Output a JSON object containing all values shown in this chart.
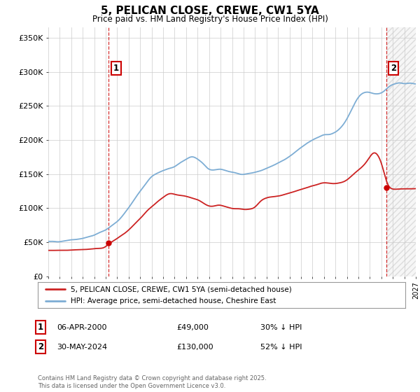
{
  "title": "5, PELICAN CLOSE, CREWE, CW1 5YA",
  "subtitle": "Price paid vs. HM Land Registry's House Price Index (HPI)",
  "ylabel_ticks": [
    "£0",
    "£50K",
    "£100K",
    "£150K",
    "£200K",
    "£250K",
    "£300K",
    "£350K"
  ],
  "ytick_values": [
    0,
    50000,
    100000,
    150000,
    200000,
    250000,
    300000,
    350000
  ],
  "ylim": [
    0,
    365000
  ],
  "xlim_start": 1995,
  "xlim_end": 2027,
  "sale1_date": 2000.27,
  "sale1_price": 49000,
  "sale1_label": "1",
  "sale2_date": 2024.42,
  "sale2_price": 130000,
  "sale2_label": "2",
  "marker_color": "#cc0000",
  "hpi_color": "#7dadd4",
  "sale_line_color": "#cc2222",
  "grid_color": "#cccccc",
  "annotation_box_color": "#cc0000",
  "bg_color": "#ffffff",
  "hatch_color": "#bbbbbb",
  "legend_line1": "5, PELICAN CLOSE, CREWE, CW1 5YA (semi-detached house)",
  "legend_line2": "HPI: Average price, semi-detached house, Cheshire East",
  "note1_num": "1",
  "note1_date": "06-APR-2000",
  "note1_price": "£49,000",
  "note1_hpi": "30% ↓ HPI",
  "note2_num": "2",
  "note2_date": "30-MAY-2024",
  "note2_price": "£130,000",
  "note2_hpi": "52% ↓ HPI",
  "footnote": "Contains HM Land Registry data © Crown copyright and database right 2025.\nThis data is licensed under the Open Government Licence v3.0."
}
